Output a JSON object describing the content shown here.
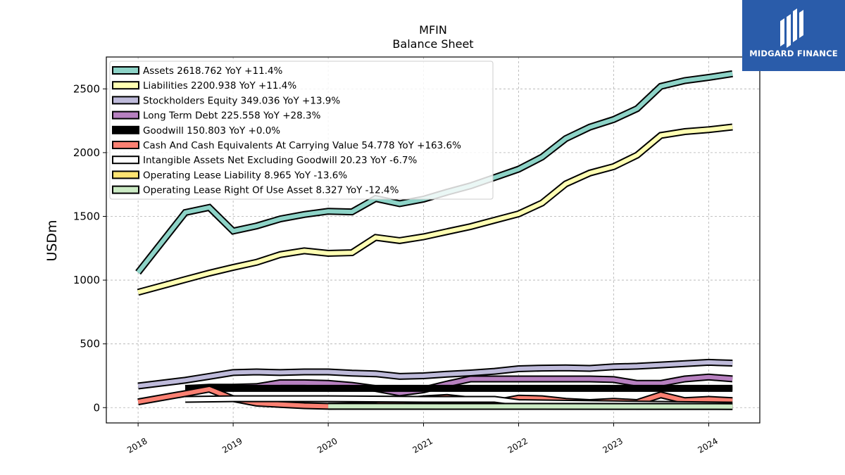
{
  "chart_data": {
    "type": "line",
    "title": "MFIN",
    "subtitle": "Balance  Sheet",
    "ylabel": "USDm",
    "ylim": [
      -120,
      2750
    ],
    "xlim": [
      "2017-09-01",
      "2024-07-15"
    ],
    "yticks": [
      0,
      500,
      1000,
      1500,
      2000,
      2500
    ],
    "xticks": [
      "2018",
      "2019",
      "2020",
      "2021",
      "2022",
      "2023",
      "2024"
    ],
    "grid": true,
    "legend_position": "top-left",
    "series": [
      {
        "name": "Assets  2618.762 YoY +11.4%",
        "color": "#8dd3c7",
        "points": [
          [
            "2018-01-01",
            1060
          ],
          [
            "2018-07-01",
            1530
          ],
          [
            "2018-10-01",
            1570
          ],
          [
            "2019-01-01",
            1385
          ],
          [
            "2019-04-01",
            1425
          ],
          [
            "2019-07-01",
            1480
          ],
          [
            "2019-10-01",
            1515
          ],
          [
            "2020-01-01",
            1540
          ],
          [
            "2020-04-01",
            1535
          ],
          [
            "2020-07-01",
            1640
          ],
          [
            "2020-10-01",
            1600
          ],
          [
            "2021-01-01",
            1635
          ],
          [
            "2021-04-01",
            1690
          ],
          [
            "2021-07-01",
            1740
          ],
          [
            "2021-10-01",
            1805
          ],
          [
            "2022-01-01",
            1870
          ],
          [
            "2022-04-01",
            1965
          ],
          [
            "2022-07-01",
            2110
          ],
          [
            "2022-10-01",
            2200
          ],
          [
            "2023-01-01",
            2260
          ],
          [
            "2023-04-01",
            2345
          ],
          [
            "2023-07-01",
            2520
          ],
          [
            "2023-10-01",
            2565
          ],
          [
            "2024-01-01",
            2590
          ],
          [
            "2024-04-01",
            2618.762
          ]
        ]
      },
      {
        "name": "Liabilities  2200.938 YoY +11.4%",
        "color": "#ffffb3",
        "points": [
          [
            "2018-01-01",
            905
          ],
          [
            "2018-07-01",
            1005
          ],
          [
            "2018-10-01",
            1055
          ],
          [
            "2019-01-01",
            1100
          ],
          [
            "2019-04-01",
            1140
          ],
          [
            "2019-07-01",
            1200
          ],
          [
            "2019-10-01",
            1230
          ],
          [
            "2020-01-01",
            1210
          ],
          [
            "2020-04-01",
            1215
          ],
          [
            "2020-07-01",
            1335
          ],
          [
            "2020-10-01",
            1310
          ],
          [
            "2021-01-01",
            1340
          ],
          [
            "2021-04-01",
            1380
          ],
          [
            "2021-07-01",
            1420
          ],
          [
            "2021-10-01",
            1470
          ],
          [
            "2022-01-01",
            1520
          ],
          [
            "2022-04-01",
            1605
          ],
          [
            "2022-07-01",
            1755
          ],
          [
            "2022-10-01",
            1840
          ],
          [
            "2023-01-01",
            1890
          ],
          [
            "2023-04-01",
            1980
          ],
          [
            "2023-07-01",
            2135
          ],
          [
            "2023-10-01",
            2165
          ],
          [
            "2024-01-01",
            2180
          ],
          [
            "2024-04-01",
            2200.938
          ]
        ]
      },
      {
        "name": "Stockholders Equity  349.036 YoY +13.9%",
        "color": "#bebada",
        "points": [
          [
            "2018-01-01",
            170
          ],
          [
            "2018-07-01",
            215
          ],
          [
            "2018-10-01",
            245
          ],
          [
            "2019-01-01",
            275
          ],
          [
            "2019-04-01",
            280
          ],
          [
            "2019-07-01",
            275
          ],
          [
            "2019-10-01",
            280
          ],
          [
            "2020-01-01",
            280
          ],
          [
            "2020-04-01",
            270
          ],
          [
            "2020-07-01",
            265
          ],
          [
            "2020-10-01",
            245
          ],
          [
            "2021-01-01",
            250
          ],
          [
            "2021-04-01",
            262
          ],
          [
            "2021-07-01",
            272
          ],
          [
            "2021-10-01",
            285
          ],
          [
            "2022-01-01",
            305
          ],
          [
            "2022-04-01",
            310
          ],
          [
            "2022-07-01",
            312
          ],
          [
            "2022-10-01",
            308
          ],
          [
            "2023-01-01",
            320
          ],
          [
            "2023-04-01",
            325
          ],
          [
            "2023-07-01",
            335
          ],
          [
            "2023-10-01",
            345
          ],
          [
            "2024-01-01",
            355
          ],
          [
            "2024-04-01",
            349.036
          ]
        ]
      },
      {
        "name": "Long Term Debt  225.558 YoY +28.3%",
        "color": "#b780c0",
        "points": [
          [
            "2018-07-01",
            150
          ],
          [
            "2018-10-01",
            160
          ],
          [
            "2019-01-01",
            160
          ],
          [
            "2019-04-01",
            165
          ],
          [
            "2019-07-01",
            195
          ],
          [
            "2019-10-01",
            195
          ],
          [
            "2020-01-01",
            190
          ],
          [
            "2020-04-01",
            175
          ],
          [
            "2020-07-01",
            150
          ],
          [
            "2020-10-01",
            115
          ],
          [
            "2021-01-01",
            140
          ],
          [
            "2021-04-01",
            185
          ],
          [
            "2021-07-01",
            225
          ],
          [
            "2021-10-01",
            225
          ],
          [
            "2022-01-01",
            225
          ],
          [
            "2022-04-01",
            225
          ],
          [
            "2022-07-01",
            225
          ],
          [
            "2022-10-01",
            225
          ],
          [
            "2023-01-01",
            220
          ],
          [
            "2023-04-01",
            190
          ],
          [
            "2023-07-01",
            190
          ],
          [
            "2023-10-01",
            225
          ],
          [
            "2024-01-01",
            240
          ],
          [
            "2024-04-01",
            225.558
          ]
        ]
      },
      {
        "name": "Goodwill  150.803 YoY +0.0%",
        "color": "#000000",
        "points": [
          [
            "2018-07-01",
            150.803
          ],
          [
            "2024-04-01",
            150.803
          ]
        ]
      },
      {
        "name": "Cash And Cash Equivalents At Carrying Value  54.778 YoY +163.6%",
        "color": "#fb8072",
        "points": [
          [
            "2018-01-01",
            45
          ],
          [
            "2018-07-01",
            110
          ],
          [
            "2018-10-01",
            145
          ],
          [
            "2019-01-01",
            70
          ],
          [
            "2019-04-01",
            35
          ],
          [
            "2019-07-01",
            25
          ],
          [
            "2019-10-01",
            15
          ],
          [
            "2020-01-01",
            10
          ],
          [
            "2020-04-01",
            15
          ],
          [
            "2020-07-01",
            20
          ],
          [
            "2020-10-01",
            50
          ],
          [
            "2021-01-01",
            70
          ],
          [
            "2021-04-01",
            80
          ],
          [
            "2021-07-01",
            60
          ],
          [
            "2021-10-01",
            40
          ],
          [
            "2022-01-01",
            75
          ],
          [
            "2022-04-01",
            70
          ],
          [
            "2022-07-01",
            50
          ],
          [
            "2022-10-01",
            40
          ],
          [
            "2023-01-01",
            50
          ],
          [
            "2023-04-01",
            40
          ],
          [
            "2023-07-01",
            100
          ],
          [
            "2023-10-01",
            55
          ],
          [
            "2024-01-01",
            65
          ],
          [
            "2024-04-01",
            54.778
          ]
        ]
      },
      {
        "name": "Intangible Assets Net Excluding Goodwill  20.23 YoY -6.7%",
        "color": "#ffffff",
        "points": [
          [
            "2018-07-01",
            65
          ],
          [
            "2019-01-01",
            70
          ],
          [
            "2020-01-01",
            70
          ],
          [
            "2021-01-01",
            65
          ],
          [
            "2021-10-01",
            65
          ],
          [
            "2022-01-01",
            40
          ],
          [
            "2023-01-01",
            30
          ],
          [
            "2024-04-01",
            20.23
          ]
        ]
      },
      {
        "name": "Operating Lease Liability  8.965 YoY -13.6%",
        "color": "#fee472",
        "points": [
          [
            "2020-01-01",
            11
          ],
          [
            "2022-01-01",
            10
          ],
          [
            "2024-04-01",
            8.965
          ]
        ]
      },
      {
        "name": "Operating Lease Right Of Use Asset  8.327 YoY -12.4%",
        "color": "#ccebc5",
        "points": [
          [
            "2020-01-01",
            10
          ],
          [
            "2022-01-01",
            9.5
          ],
          [
            "2024-04-01",
            8.327
          ]
        ]
      }
    ]
  },
  "logo": {
    "text": "MIDGARD FINANCE",
    "color": "#2a5caa"
  }
}
